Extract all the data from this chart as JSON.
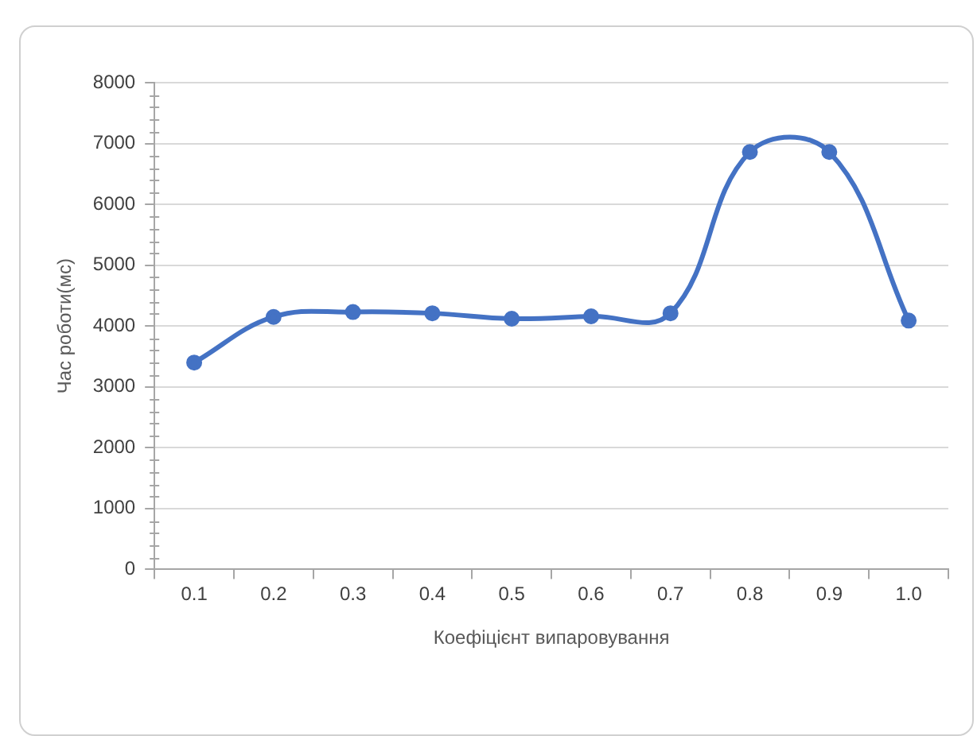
{
  "chart_data": {
    "type": "line",
    "xlabel": "Коефіцієнт випаровування",
    "ylabel": "Час роботи(мс)",
    "categories": [
      "0.1",
      "0.2",
      "0.3",
      "0.4",
      "0.5",
      "0.6",
      "0.7",
      "0.8",
      "0.9",
      "1.0"
    ],
    "series": [
      {
        "color": "#4472c4",
        "values": [
          3400,
          4150,
          4230,
          4210,
          4120,
          4160,
          4210,
          6860,
          6860,
          4090
        ]
      }
    ],
    "ylim": [
      0,
      8000
    ],
    "yticks": [
      0,
      1000,
      2000,
      3000,
      4000,
      5000,
      6000,
      7000,
      8000
    ],
    "grid": "y",
    "legend": false,
    "marker": "circle",
    "line_style": "solid"
  }
}
